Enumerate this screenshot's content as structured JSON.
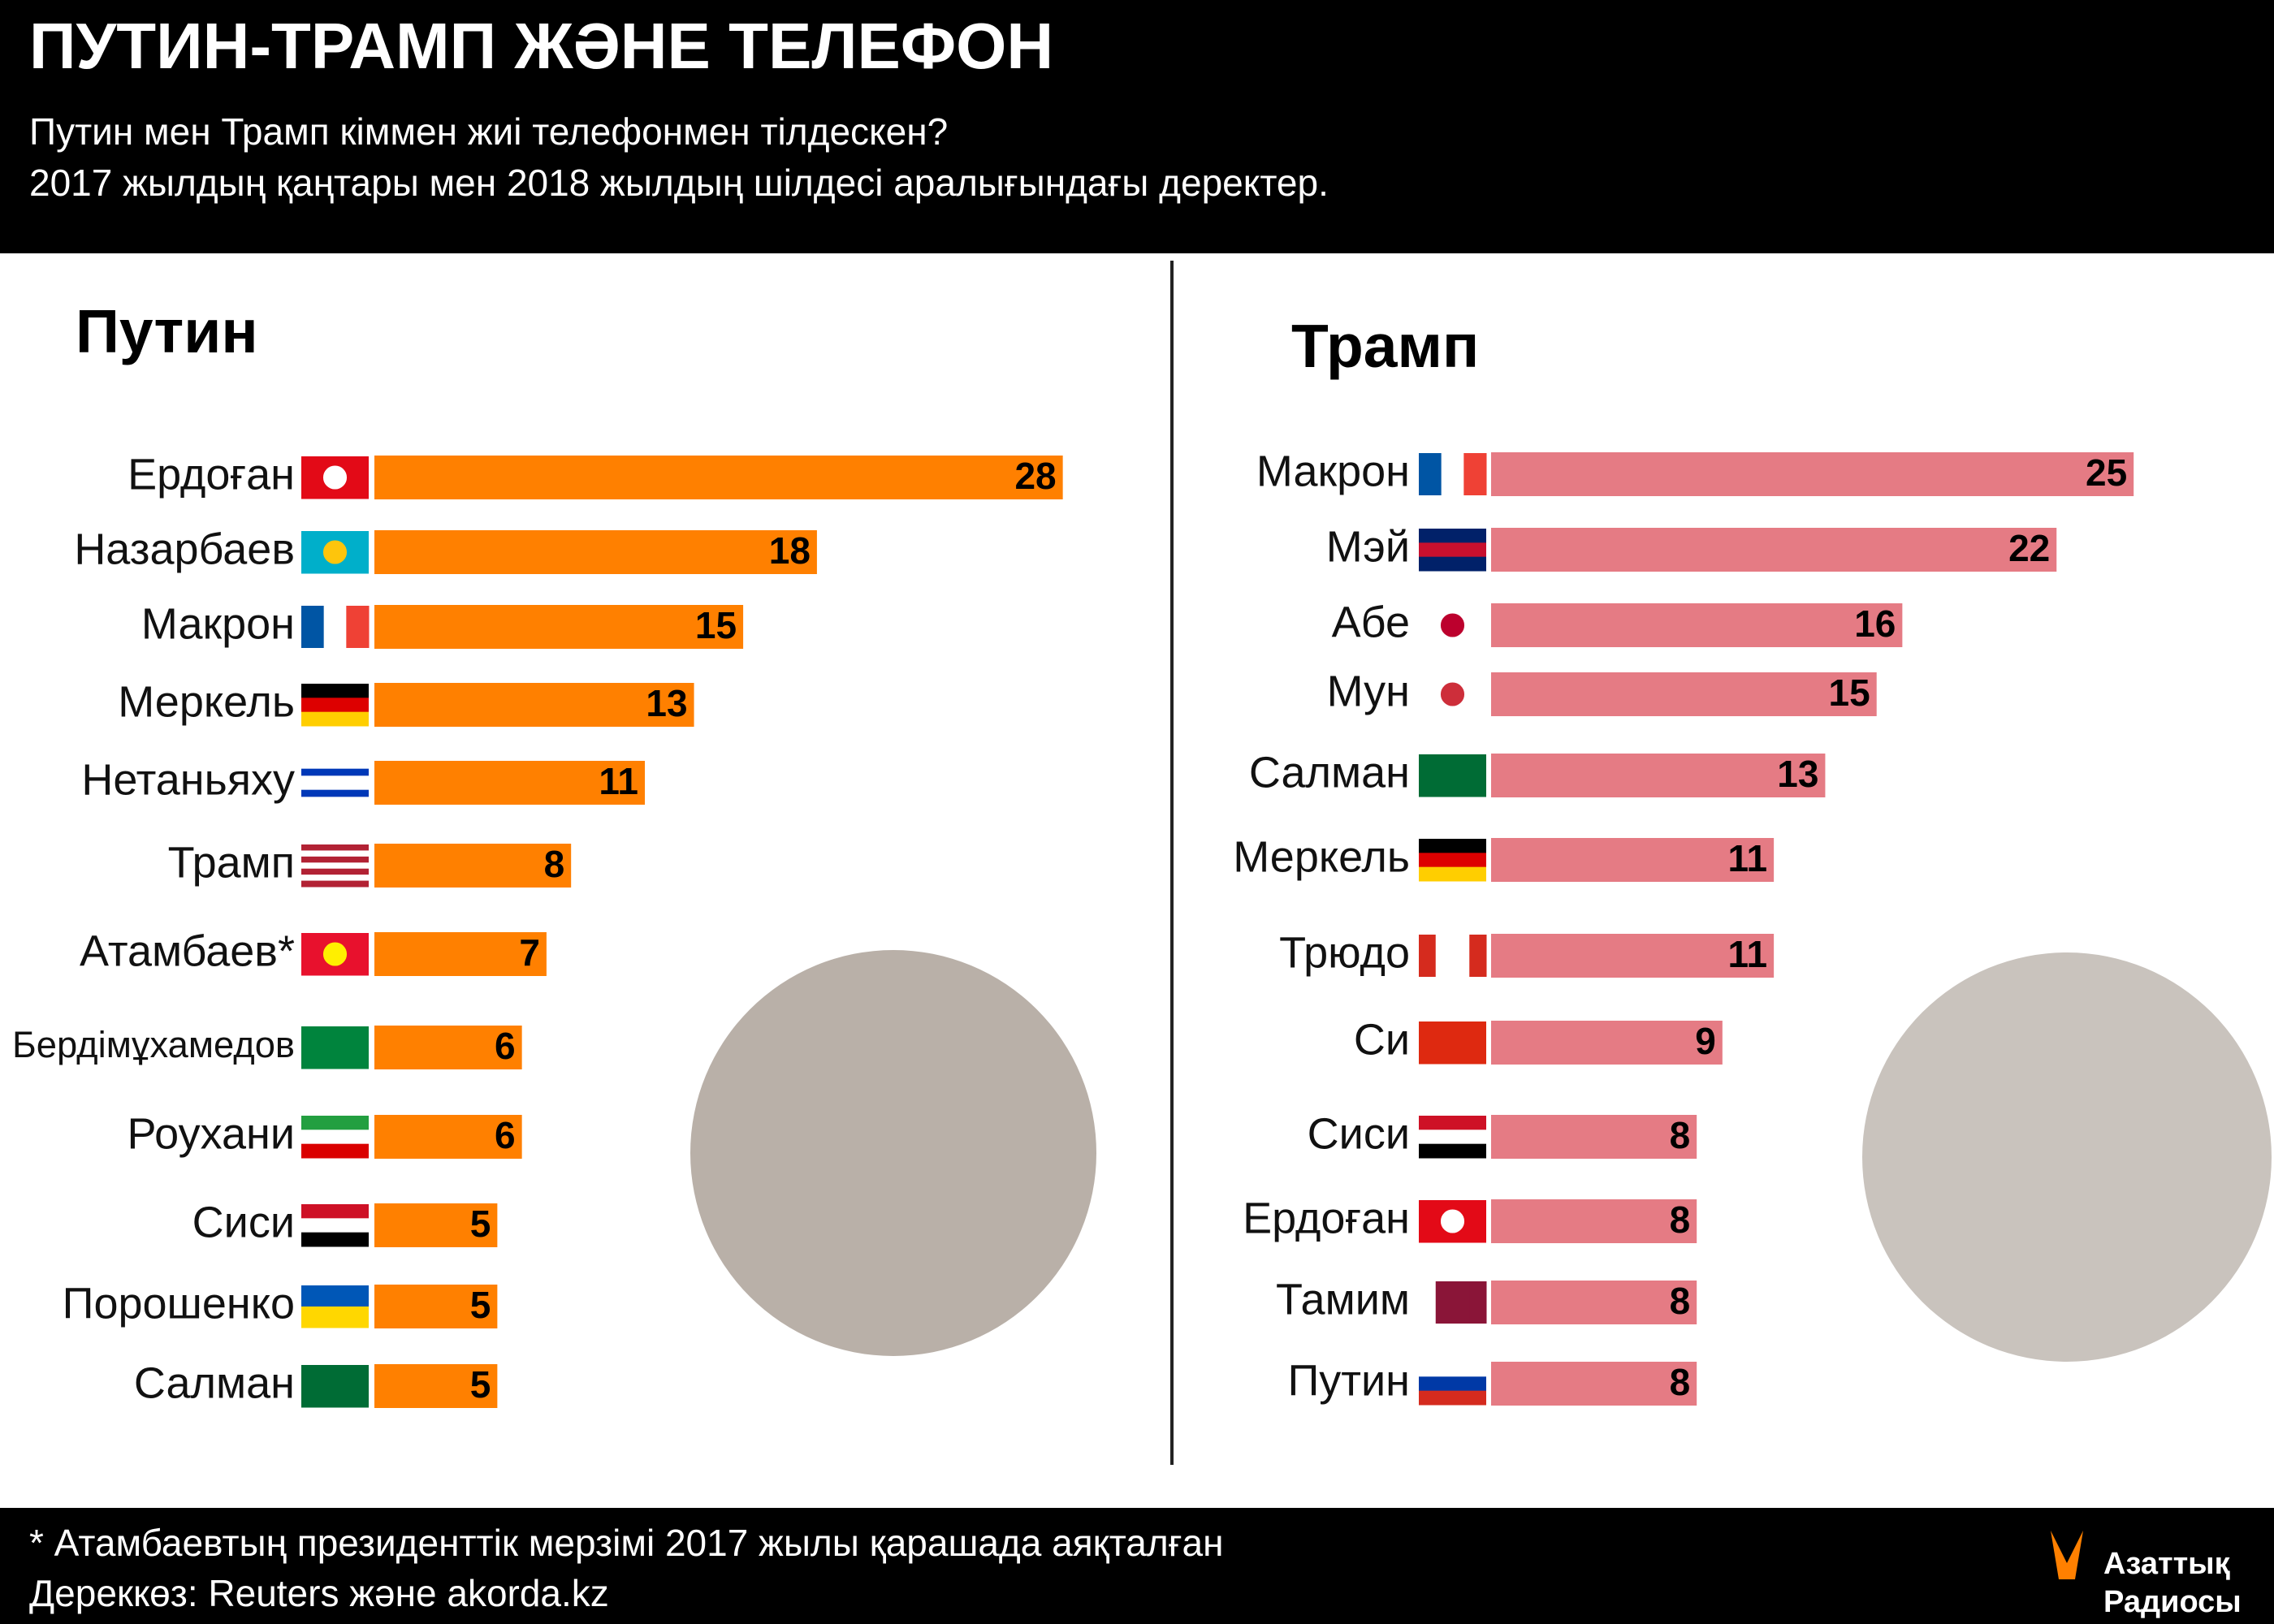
{
  "title": "ПУТИН-ТРАМП ЖӘНЕ ТЕЛЕФОН",
  "subtitle": [
    "Путин мен Трамп кіммен жиі телефонмен тілдескен?",
    "2017 жылдың қаңтары мен 2018 жылдың шілдесі аралығындағы деректер."
  ],
  "chart_data": [
    {
      "type": "bar",
      "title": "Путин",
      "color": "#ff8000",
      "categories": [
        "Ердоған",
        "Назарбаев",
        "Макрон",
        "Меркель",
        "Нетаньяху",
        "Трамп",
        "Атамбаев*",
        "Бердімұхамедов",
        "Роухани",
        "Сиси",
        "Порошенко",
        "Салман"
      ],
      "values": [
        28,
        18,
        15,
        13,
        11,
        8,
        7,
        6,
        6,
        5,
        5,
        5
      ]
    },
    {
      "type": "bar",
      "title": "Трамп",
      "color": "#e57b84",
      "categories": [
        "Макрон",
        "Мэй",
        "Абе",
        "Мун",
        "Салман",
        "Меркель",
        "Трюдо",
        "Си",
        "Сиси",
        "Ердоған",
        "Тамим",
        "Путин"
      ],
      "values": [
        25,
        22,
        16,
        15,
        13,
        11,
        11,
        9,
        8,
        8,
        8,
        8
      ]
    }
  ],
  "footnote": "* Атамбаевтың президенттік мерзімі 2017 жылы қарашада аяқталған",
  "source": "Дереккөз: Reuters және akorda.kz",
  "logo": [
    "Азаттық",
    "Радиосы"
  ]
}
